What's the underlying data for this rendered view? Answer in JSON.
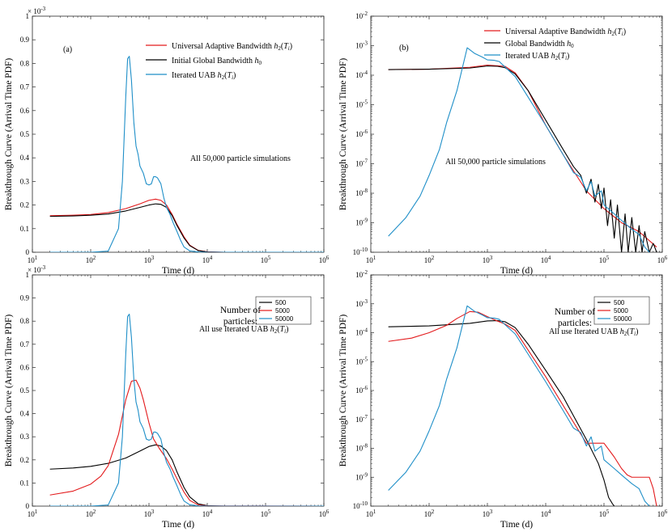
{
  "colors": {
    "red": "#e31a1c",
    "black": "#000000",
    "blue": "#1f8fc8",
    "axis": "#262626"
  },
  "chart_data": [
    {
      "type": "line",
      "panel_label": "(a)",
      "xscale": "log",
      "yscale": "linear",
      "xlim": [
        10,
        1000000
      ],
      "ylim": [
        0,
        0.001
      ],
      "y_exponent_label": "× 10^-3",
      "xticks": [
        "10^1",
        "10^2",
        "10^3",
        "10^4",
        "10^5",
        "10^6"
      ],
      "yticks": [
        "0",
        "0.1",
        "0.2",
        "0.3",
        "0.4",
        "0.5",
        "0.6",
        "0.7",
        "0.8",
        "0.9",
        "1"
      ],
      "xlabel": "Time (d)",
      "ylabel": "Breakthrough Curve (Arrival Time PDF)",
      "annotation": "All 50,000 particle simulations",
      "legend_placement": "top-right",
      "series": [
        {
          "name": "Universal Adaptive Bandwidth h2(Ti)",
          "color": "red",
          "x": [
            20,
            50,
            100,
            200,
            400,
            700,
            1000,
            1300,
            1600,
            2000,
            2500,
            3000,
            4000,
            5000,
            7000,
            10000,
            20000,
            1000000
          ],
          "y": [
            0.000155,
            0.000157,
            0.00016,
            0.000168,
            0.000185,
            0.000205,
            0.00022,
            0.000225,
            0.00022,
            0.0002,
            0.00016,
            0.00012,
            6.5e-05,
            3e-05,
            8e-06,
            2e-06,
            0,
            0
          ]
        },
        {
          "name": "Initial Global Bandwidth h0",
          "color": "black",
          "x": [
            20,
            50,
            100,
            200,
            400,
            700,
            1000,
            1300,
            1600,
            2000,
            2500,
            3000,
            4000,
            5000,
            7000,
            10000,
            20000,
            1000000
          ],
          "y": [
            0.000152,
            0.000154,
            0.000157,
            0.000162,
            0.000175,
            0.00019,
            0.0002,
            0.000205,
            0.000203,
            0.00019,
            0.000155,
            0.000115,
            6e-05,
            2.8e-05,
            7e-06,
            1e-06,
            0,
            0
          ]
        },
        {
          "name": "Iterated UAB h2(Ti)",
          "color": "blue",
          "x": [
            20,
            100,
            200,
            300,
            350,
            400,
            430,
            460,
            500,
            550,
            600,
            650,
            700,
            800,
            900,
            1000,
            1100,
            1200,
            1300,
            1400,
            1600,
            1800,
            2000,
            2300,
            2600,
            3000,
            3500,
            4000,
            5000,
            7000,
            10000,
            1000000
          ],
          "y": [
            0,
            0,
            5e-06,
            0.0001,
            0.0003,
            0.00066,
            0.00082,
            0.00083,
            0.00073,
            0.00055,
            0.00045,
            0.000415,
            0.000365,
            0.000335,
            0.00029,
            0.000285,
            0.00029,
            0.00032,
            0.00032,
            0.000315,
            0.00029,
            0.00023,
            0.00019,
            0.00016,
            0.000125,
            9e-05,
            5e-05,
            2.2e-05,
            6e-06,
            1e-06,
            0,
            0
          ]
        }
      ]
    },
    {
      "type": "line",
      "panel_label": "(b)",
      "xscale": "log",
      "yscale": "log",
      "xlim": [
        10,
        1000000
      ],
      "ylim": [
        1e-10,
        0.01
      ],
      "xticks": [
        "10^1",
        "10^2",
        "10^3",
        "10^4",
        "10^5",
        "10^6"
      ],
      "yticks": [
        "10^-10",
        "10^-9",
        "10^-8",
        "10^-7",
        "10^-6",
        "10^-5",
        "10^-4",
        "10^-3",
        "10^-2"
      ],
      "xlabel": "Time (d)",
      "ylabel": "Breakthrough Curve (Arrival Time PDF)",
      "annotation": "All 50,000 particle simulations",
      "legend_placement": "top-right",
      "series": [
        {
          "name": "Universal Adaptive Bandwidth h2(Ti)",
          "color": "red",
          "x": [
            20,
            100,
            500,
            1000,
            2000,
            3000,
            5000,
            10000,
            20000,
            50000,
            100000,
            200000,
            400000,
            800000
          ],
          "y": [
            0.000155,
            0.00016,
            0.000185,
            0.00022,
            0.0002,
            0.00012,
            3e-05,
            2e-06,
            2e-07,
            1.2e-08,
            3e-09,
            1e-09,
            5e-10,
            1.5e-10
          ]
        },
        {
          "name": "Global Bandwidth h0",
          "color": "black",
          "x": [
            20,
            100,
            500,
            1000,
            1500,
            2000,
            3000,
            5000,
            10000,
            20000,
            30000,
            40000,
            50000,
            60000,
            70000,
            80000,
            90000,
            100000,
            115000,
            130000,
            150000,
            170000,
            200000,
            230000,
            260000,
            300000,
            350000,
            400000,
            450000,
            500000,
            600000,
            700000,
            800000
          ],
          "y": [
            0.000155,
            0.00016,
            0.000175,
            0.000205,
            0.0002,
            0.00018,
            0.00011,
            3e-05,
            3e-06,
            3e-07,
            8e-08,
            4e-08,
            1e-08,
            3e-08,
            5e-09,
            2e-08,
            3e-09,
            1.5e-08,
            8e-10,
            6e-09,
            3e-10,
            4e-09,
            1e-10,
            2e-09,
            1e-10,
            1.5e-09,
            1e-10,
            8e-10,
            1e-10,
            5e-10,
            1e-10,
            2e-10,
            1e-10
          ]
        },
        {
          "name": "Iterated UAB h2(Ti)",
          "color": "blue",
          "x": [
            20,
            40,
            70,
            100,
            150,
            200,
            300,
            450,
            600,
            800,
            1000,
            1300,
            1600,
            2000,
            3000,
            5000,
            10000,
            20000,
            30000,
            40000,
            50000,
            60000,
            70000,
            90000,
            100000,
            150000,
            200000,
            300000,
            400000,
            500000,
            600000
          ],
          "y": [
            3.5e-10,
            1.5e-09,
            8e-09,
            4e-08,
            3e-07,
            2.5e-06,
            3e-05,
            0.00085,
            0.00055,
            0.00042,
            0.00033,
            0.00032,
            0.00029,
            0.00019,
            9e-05,
            1.8e-05,
            2e-06,
            2e-07,
            5e-08,
            3.5e-08,
            1.2e-08,
            2.5e-08,
            8e-09,
            1.2e-08,
            4e-09,
            2e-09,
            1.2e-09,
            6e-10,
            4e-10,
            1.5e-10,
            1e-10
          ]
        }
      ]
    },
    {
      "type": "line",
      "xscale": "log",
      "yscale": "linear",
      "xlim": [
        10,
        1000000
      ],
      "ylim": [
        0,
        0.001
      ],
      "y_exponent_label": "× 10^-3",
      "xticks": [
        "10^1",
        "10^2",
        "10^3",
        "10^4",
        "10^5",
        "10^6"
      ],
      "yticks": [
        "0",
        "0.1",
        "0.2",
        "0.3",
        "0.4",
        "0.5",
        "0.6",
        "0.7",
        "0.8",
        "0.9",
        "1"
      ],
      "xlabel": "Time (d)",
      "ylabel": "Breakthrough Curve (Arrival Time PDF)",
      "legend_title": [
        "Number of",
        "particles:"
      ],
      "annotation": "All use Iterated UAB h2(Ti)",
      "legend_placement": "top-right",
      "series": [
        {
          "name": "500",
          "color": "black",
          "x": [
            20,
            50,
            100,
            200,
            400,
            700,
            1000,
            1300,
            1600,
            2000,
            2500,
            3000,
            4000,
            5000,
            7000,
            10000,
            20000,
            1000000
          ],
          "y": [
            0.00016,
            0.000165,
            0.000172,
            0.000185,
            0.000208,
            0.000238,
            0.000258,
            0.000265,
            0.00026,
            0.00024,
            0.0002,
            0.00015,
            8e-05,
            4e-05,
            1e-05,
            2e-06,
            0,
            0
          ]
        },
        {
          "name": "5000",
          "color": "red",
          "x": [
            20,
            50,
            100,
            150,
            200,
            300,
            400,
            500,
            600,
            700,
            800,
            1000,
            1200,
            1500,
            2000,
            2500,
            3000,
            4000,
            5000,
            7000,
            10000,
            1000000
          ],
          "y": [
            4.8e-05,
            6.5e-05,
            9.5e-05,
            0.00013,
            0.000175,
            0.00031,
            0.00046,
            0.00054,
            0.000545,
            0.00051,
            0.00046,
            0.00036,
            0.00029,
            0.00025,
            0.000205,
            0.00016,
            0.00012,
            6e-05,
            2.5e-05,
            5e-06,
            1e-06,
            0
          ]
        },
        {
          "name": "50000",
          "color": "blue",
          "x": [
            20,
            100,
            200,
            300,
            350,
            400,
            430,
            460,
            500,
            550,
            600,
            650,
            700,
            800,
            900,
            1000,
            1100,
            1200,
            1300,
            1400,
            1600,
            1800,
            2000,
            2300,
            2600,
            3000,
            3500,
            4000,
            5000,
            7000,
            10000,
            1000000
          ],
          "y": [
            0,
            0,
            5e-06,
            0.0001,
            0.0003,
            0.00066,
            0.00082,
            0.00083,
            0.00073,
            0.00055,
            0.00045,
            0.000415,
            0.000365,
            0.000335,
            0.00029,
            0.000285,
            0.00029,
            0.00032,
            0.00032,
            0.000315,
            0.00029,
            0.00023,
            0.00019,
            0.00016,
            0.000125,
            9e-05,
            5e-05,
            2.2e-05,
            6e-06,
            1e-06,
            0,
            0
          ]
        }
      ]
    },
    {
      "type": "line",
      "xscale": "log",
      "yscale": "log",
      "xlim": [
        10,
        1000000
      ],
      "ylim": [
        1e-10,
        0.01
      ],
      "xticks": [
        "10^1",
        "10^2",
        "10^3",
        "10^4",
        "10^5",
        "10^6"
      ],
      "yticks": [
        "10^-10",
        "10^-9",
        "10^-8",
        "10^-7",
        "10^-6",
        "10^-5",
        "10^-4",
        "10^-3",
        "10^-2"
      ],
      "xlabel": "Time (d)",
      "ylabel": "Breakthrough Curve (Arrival Time PDF)",
      "legend_title": [
        "Number of",
        "particles:"
      ],
      "annotation": "All use Iterated UAB h2(Ti)",
      "legend_placement": "top-right",
      "series": [
        {
          "name": "500",
          "color": "black",
          "x": [
            20,
            100,
            500,
            1000,
            1500,
            2000,
            3000,
            5000,
            10000,
            20000,
            50000,
            80000,
            100000,
            120000,
            140000,
            150000
          ],
          "y": [
            0.00016,
            0.000172,
            0.00021,
            0.000255,
            0.000262,
            0.00024,
            0.00015,
            4e-05,
            5e-06,
            6e-07,
            2e-08,
            3e-09,
            8e-10,
            2e-10,
            1.2e-10,
            1e-10
          ]
        },
        {
          "name": "5000",
          "color": "red",
          "x": [
            20,
            50,
            100,
            200,
            300,
            500,
            700,
            1000,
            1500,
            2000,
            3000,
            5000,
            10000,
            20000,
            50000,
            100000,
            150000,
            200000,
            250000,
            300000,
            400000,
            500000,
            600000,
            700000,
            800000
          ],
          "y": [
            5e-05,
            6.5e-05,
            0.0001,
            0.00018,
            0.00031,
            0.00054,
            0.00051,
            0.00036,
            0.00025,
            0.0002,
            0.00012,
            2.5e-05,
            3e-06,
            3e-07,
            1.5e-08,
            1.5e-08,
            5e-09,
            2e-09,
            1.2e-09,
            1e-09,
            1e-09,
            1e-09,
            1e-09,
            4e-10,
            1e-10
          ]
        },
        {
          "name": "50000",
          "color": "blue",
          "x": [
            20,
            40,
            70,
            100,
            150,
            200,
            300,
            450,
            600,
            800,
            1000,
            1300,
            1600,
            2000,
            3000,
            5000,
            10000,
            20000,
            30000,
            40000,
            50000,
            60000,
            70000,
            90000,
            100000,
            150000,
            200000,
            300000,
            400000,
            500000,
            600000
          ],
          "y": [
            3.5e-10,
            1.5e-09,
            8e-09,
            4e-08,
            3e-07,
            2.5e-06,
            3e-05,
            0.00085,
            0.00055,
            0.00042,
            0.00033,
            0.00032,
            0.00029,
            0.00019,
            9e-05,
            1.8e-05,
            2e-06,
            2e-07,
            5e-08,
            3.5e-08,
            1.2e-08,
            2.5e-08,
            8e-09,
            1.2e-08,
            4e-09,
            2e-09,
            1.2e-09,
            6e-10,
            4e-10,
            1.5e-10,
            1e-10
          ]
        }
      ]
    }
  ]
}
